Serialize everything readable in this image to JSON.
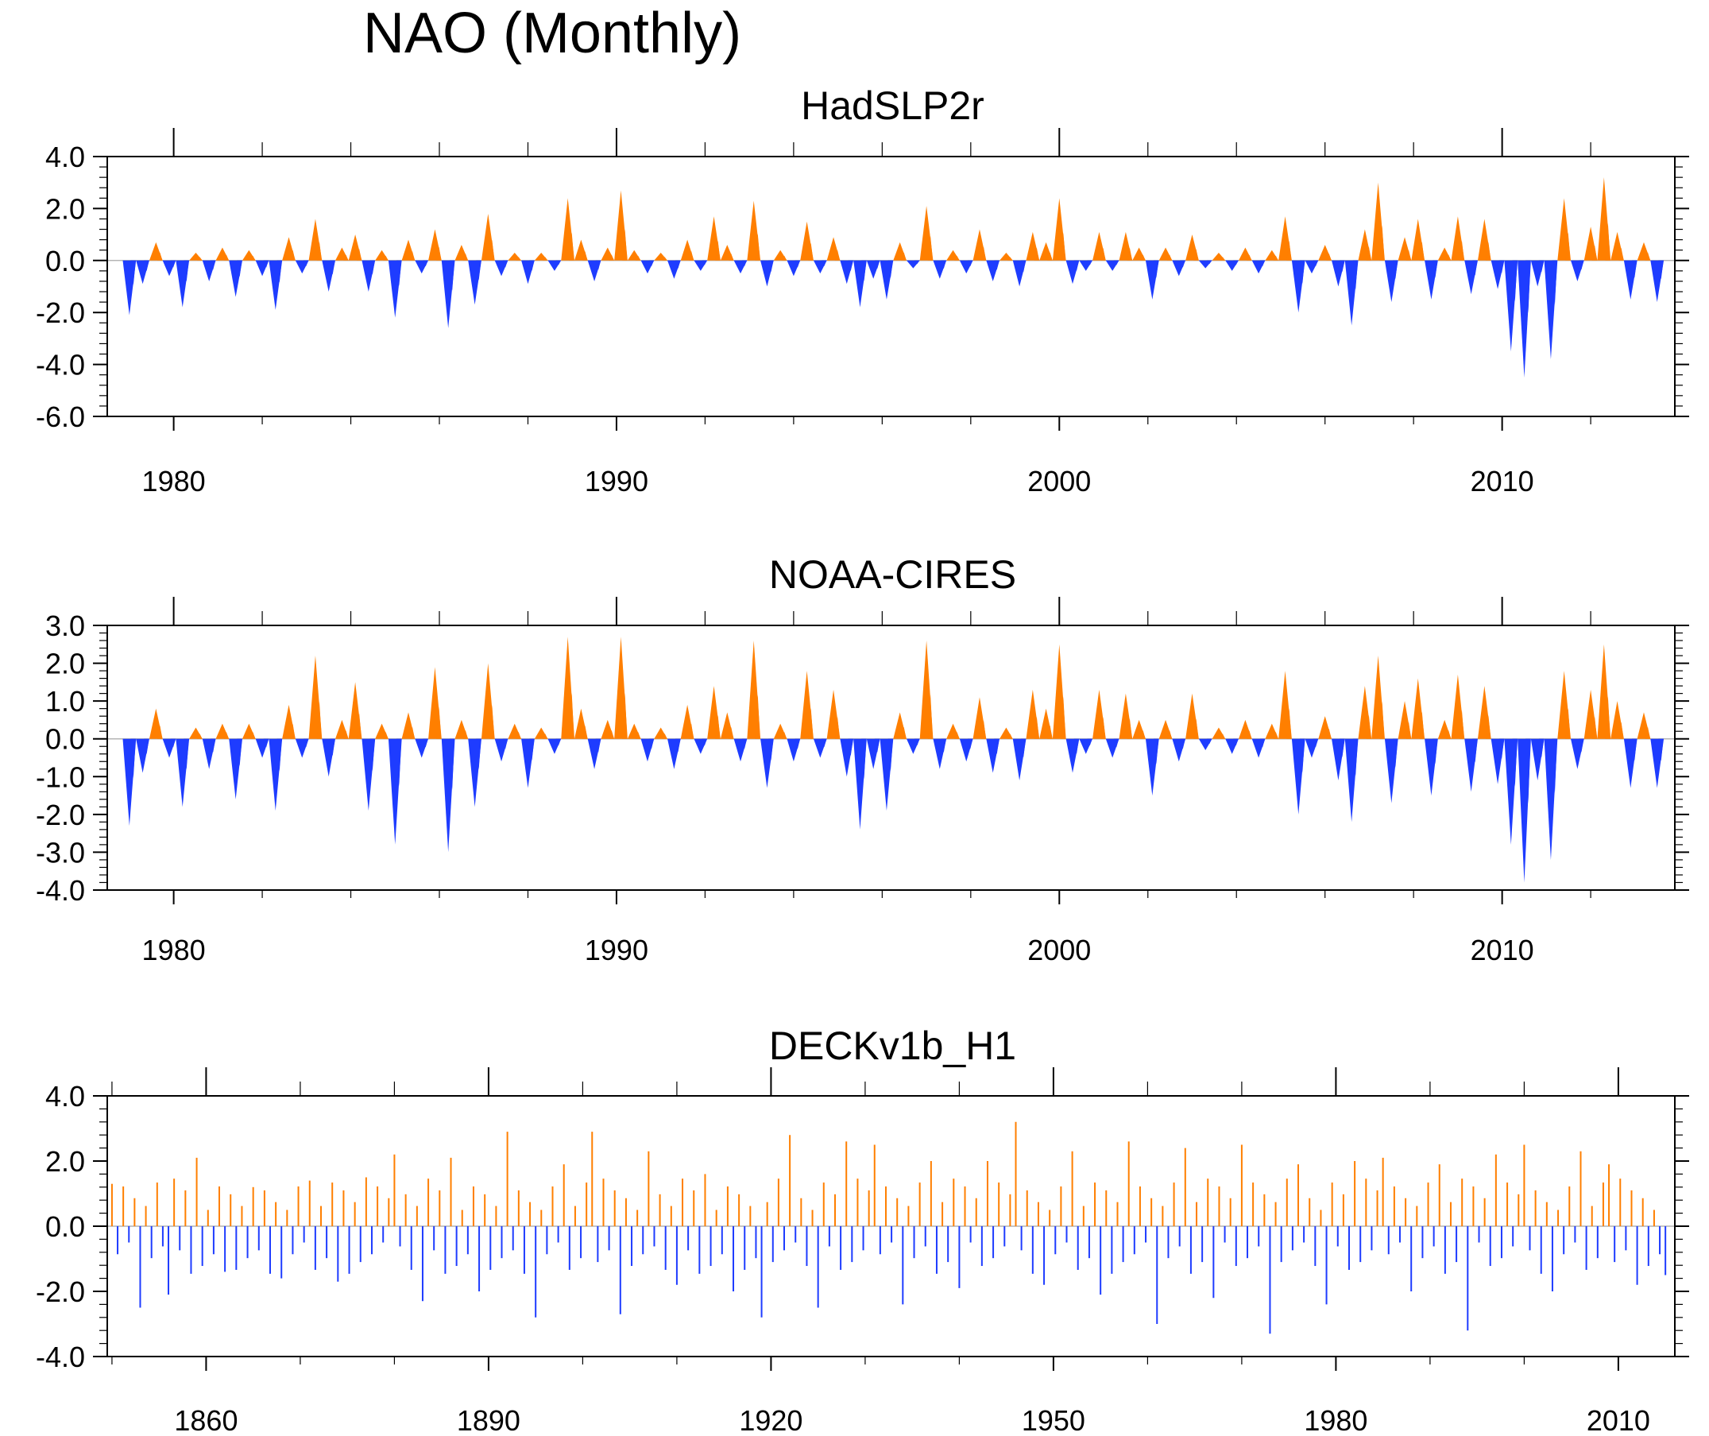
{
  "page_title": "NAO (Monthly)",
  "colors": {
    "positive": "#ff7f00",
    "negative": "#1e3cff",
    "axis": "#000000",
    "zero_line": "#b4b4b4"
  },
  "chart_data": [
    {
      "type": "area",
      "title": "HadSLP2r",
      "xlabel": "",
      "ylabel": "",
      "xlim": [
        1978.5,
        2013.9
      ],
      "ylim": [
        -6.0,
        4.0
      ],
      "y_ticks": [
        "4.0",
        "2.0",
        "0.0",
        "-2.0",
        "-4.0",
        "-6.0"
      ],
      "y_tick_values": [
        4,
        2,
        0,
        -2,
        -4,
        -6
      ],
      "x_ticks": [
        "1980",
        "1990",
        "2000",
        "2010"
      ],
      "x_tick_values": [
        1980,
        1990,
        2000,
        2010
      ],
      "fill": "above zero orange, below zero blue",
      "x": [
        1979.0,
        1979.3,
        1979.6,
        1979.9,
        1980.2,
        1980.5,
        1980.8,
        1981.1,
        1981.4,
        1981.7,
        1982.0,
        1982.3,
        1982.6,
        1982.9,
        1983.2,
        1983.5,
        1983.8,
        1984.1,
        1984.4,
        1984.7,
        1985.0,
        1985.3,
        1985.6,
        1985.9,
        1986.2,
        1986.5,
        1986.8,
        1987.1,
        1987.4,
        1987.7,
        1988.0,
        1988.3,
        1988.6,
        1988.9,
        1989.2,
        1989.5,
        1989.8,
        1990.1,
        1990.4,
        1990.7,
        1991.0,
        1991.3,
        1991.6,
        1991.9,
        1992.2,
        1992.5,
        1992.8,
        1993.1,
        1993.4,
        1993.7,
        1994.0,
        1994.3,
        1994.6,
        1994.9,
        1995.2,
        1995.5,
        1995.8,
        1996.1,
        1996.4,
        1996.7,
        1997.0,
        1997.3,
        1997.6,
        1997.9,
        1998.2,
        1998.5,
        1998.8,
        1999.1,
        1999.4,
        1999.7,
        2000.0,
        2000.3,
        2000.6,
        2000.9,
        2001.2,
        2001.5,
        2001.8,
        2002.1,
        2002.4,
        2002.7,
        2003.0,
        2003.3,
        2003.6,
        2003.9,
        2004.2,
        2004.5,
        2004.8,
        2005.1,
        2005.4,
        2005.7,
        2006.0,
        2006.3,
        2006.6,
        2006.9,
        2007.2,
        2007.5,
        2007.8,
        2008.1,
        2008.4,
        2008.7,
        2009.0,
        2009.3,
        2009.6,
        2009.9,
        2010.2,
        2010.5,
        2010.8,
        2011.1,
        2011.4,
        2011.7,
        2012.0,
        2012.3,
        2012.6,
        2012.9,
        2013.2,
        2013.5
      ],
      "values": [
        -2.1,
        -0.9,
        0.7,
        -0.6,
        -1.8,
        0.3,
        -0.8,
        0.5,
        -1.4,
        0.4,
        -0.6,
        -1.9,
        0.9,
        -0.5,
        1.6,
        -1.2,
        0.5,
        1.0,
        -1.2,
        0.4,
        -2.2,
        0.8,
        -0.5,
        1.2,
        -2.6,
        0.6,
        -1.7,
        1.8,
        -0.6,
        0.3,
        -0.9,
        0.3,
        -0.4,
        2.4,
        0.8,
        -0.8,
        0.5,
        2.7,
        0.4,
        -0.5,
        0.3,
        -0.7,
        0.8,
        -0.4,
        1.7,
        0.6,
        -0.5,
        2.3,
        -1.0,
        0.4,
        -0.6,
        1.5,
        -0.5,
        0.9,
        -0.9,
        -1.8,
        -0.7,
        -1.5,
        0.7,
        -0.3,
        2.1,
        -0.7,
        0.4,
        -0.5,
        1.2,
        -0.8,
        0.3,
        -1.0,
        1.1,
        0.7,
        2.4,
        -0.9,
        -0.4,
        1.1,
        -0.4,
        1.1,
        0.5,
        -1.5,
        0.5,
        -0.6,
        1.0,
        -0.3,
        0.3,
        -0.4,
        0.5,
        -0.5,
        0.4,
        1.7,
        -2.0,
        -0.5,
        0.6,
        -1.0,
        -2.5,
        1.2,
        3.0,
        -1.6,
        0.9,
        1.6,
        -1.5,
        0.5,
        1.7,
        -1.3,
        1.6,
        -1.1,
        -3.5,
        -4.5,
        -1.0,
        -3.8,
        2.4,
        -0.8,
        1.3,
        3.2,
        1.1,
        -1.5,
        0.7,
        -1.6
      ]
    },
    {
      "type": "area",
      "title": "NOAA-CIRES",
      "xlabel": "",
      "ylabel": "",
      "xlim": [
        1978.5,
        2013.9
      ],
      "ylim": [
        -4.0,
        3.0
      ],
      "y_ticks": [
        "3.0",
        "2.0",
        "1.0",
        "0.0",
        "-1.0",
        "-2.0",
        "-3.0",
        "-4.0"
      ],
      "y_tick_values": [
        3,
        2,
        1,
        0,
        -1,
        -2,
        -3,
        -4
      ],
      "x_ticks": [
        "1980",
        "1990",
        "2000",
        "2010"
      ],
      "x_tick_values": [
        1980,
        1990,
        2000,
        2010
      ],
      "fill": "above zero orange, below zero blue",
      "x": [
        1979.0,
        1979.3,
        1979.6,
        1979.9,
        1980.2,
        1980.5,
        1980.8,
        1981.1,
        1981.4,
        1981.7,
        1982.0,
        1982.3,
        1982.6,
        1982.9,
        1983.2,
        1983.5,
        1983.8,
        1984.1,
        1984.4,
        1984.7,
        1985.0,
        1985.3,
        1985.6,
        1985.9,
        1986.2,
        1986.5,
        1986.8,
        1987.1,
        1987.4,
        1987.7,
        1988.0,
        1988.3,
        1988.6,
        1988.9,
        1989.2,
        1989.5,
        1989.8,
        1990.1,
        1990.4,
        1990.7,
        1991.0,
        1991.3,
        1991.6,
        1991.9,
        1992.2,
        1992.5,
        1992.8,
        1993.1,
        1993.4,
        1993.7,
        1994.0,
        1994.3,
        1994.6,
        1994.9,
        1995.2,
        1995.5,
        1995.8,
        1996.1,
        1996.4,
        1996.7,
        1997.0,
        1997.3,
        1997.6,
        1997.9,
        1998.2,
        1998.5,
        1998.8,
        1999.1,
        1999.4,
        1999.7,
        2000.0,
        2000.3,
        2000.6,
        2000.9,
        2001.2,
        2001.5,
        2001.8,
        2002.1,
        2002.4,
        2002.7,
        2003.0,
        2003.3,
        2003.6,
        2003.9,
        2004.2,
        2004.5,
        2004.8,
        2005.1,
        2005.4,
        2005.7,
        2006.0,
        2006.3,
        2006.6,
        2006.9,
        2007.2,
        2007.5,
        2007.8,
        2008.1,
        2008.4,
        2008.7,
        2009.0,
        2009.3,
        2009.6,
        2009.9,
        2010.2,
        2010.5,
        2010.8,
        2011.1,
        2011.4,
        2011.7,
        2012.0,
        2012.3,
        2012.6,
        2012.9,
        2013.2,
        2013.5
      ],
      "values": [
        -2.3,
        -0.9,
        0.8,
        -0.5,
        -1.8,
        0.3,
        -0.8,
        0.4,
        -1.6,
        0.4,
        -0.5,
        -1.9,
        0.9,
        -0.5,
        2.2,
        -1.0,
        0.5,
        1.5,
        -1.9,
        0.4,
        -2.8,
        0.7,
        -0.5,
        1.9,
        -3.0,
        0.5,
        -1.8,
        2.0,
        -0.6,
        0.4,
        -1.3,
        0.3,
        -0.4,
        2.7,
        0.8,
        -0.8,
        0.5,
        2.7,
        0.4,
        -0.6,
        0.3,
        -0.8,
        0.9,
        -0.4,
        1.4,
        0.7,
        -0.6,
        2.6,
        -1.3,
        0.4,
        -0.6,
        1.8,
        -0.5,
        1.3,
        -1.0,
        -2.4,
        -0.8,
        -1.9,
        0.7,
        -0.4,
        2.6,
        -0.8,
        0.4,
        -0.6,
        1.1,
        -0.9,
        0.3,
        -1.1,
        1.3,
        0.8,
        2.5,
        -0.9,
        -0.4,
        1.3,
        -0.5,
        1.2,
        0.5,
        -1.5,
        0.5,
        -0.6,
        1.2,
        -0.3,
        0.3,
        -0.4,
        0.5,
        -0.5,
        0.4,
        1.8,
        -2.0,
        -0.5,
        0.6,
        -1.1,
        -2.2,
        1.4,
        2.2,
        -1.7,
        1.0,
        1.6,
        -1.5,
        0.5,
        1.7,
        -1.4,
        1.4,
        -1.2,
        -2.8,
        -3.8,
        -1.1,
        -3.2,
        1.8,
        -0.8,
        1.3,
        2.5,
        1.0,
        -1.3,
        0.7,
        -1.3
      ]
    },
    {
      "type": "bar",
      "title": "DECKv1b_H1",
      "xlabel": "",
      "ylabel": "",
      "xlim": [
        1849.5,
        2016.0
      ],
      "ylim": [
        -4.0,
        4.0
      ],
      "y_ticks": [
        "4.0",
        "2.0",
        "0.0",
        "-2.0",
        "-4.0"
      ],
      "y_tick_values": [
        4,
        2,
        0,
        -2,
        -4
      ],
      "x_ticks": [
        "1860",
        "1890",
        "1920",
        "1950",
        "1980",
        "2010"
      ],
      "x_tick_values": [
        1860,
        1890,
        1920,
        1950,
        1980,
        2010
      ],
      "fill": "above zero orange, below zero blue",
      "x": [
        1850,
        1853,
        1856,
        1859,
        1862,
        1865,
        1868,
        1871,
        1874,
        1877,
        1880,
        1883,
        1886,
        1889,
        1892,
        1895,
        1898,
        1901,
        1904,
        1907,
        1910,
        1913,
        1916,
        1919,
        1922,
        1925,
        1928,
        1931,
        1934,
        1937,
        1940,
        1943,
        1946,
        1949,
        1952,
        1955,
        1958,
        1961,
        1964,
        1967,
        1970,
        1973,
        1976,
        1979,
        1982,
        1985,
        1988,
        1991,
        1994,
        1997,
        2000,
        2003,
        2006,
        2009,
        2012,
        2015
      ],
      "values": [
        1.3,
        -2.5,
        -2.1,
        2.1,
        -1.4,
        1.2,
        -1.6,
        1.4,
        -1.7,
        1.5,
        2.2,
        -2.3,
        2.1,
        -2.0,
        2.9,
        -2.8,
        1.9,
        2.9,
        -2.7,
        2.3,
        -1.8,
        1.6,
        -2.0,
        -2.8,
        2.8,
        -2.5,
        2.6,
        2.5,
        -2.4,
        2.0,
        -1.9,
        2.0,
        3.2,
        -1.8,
        2.3,
        -2.1,
        2.6,
        -3.0,
        2.4,
        -2.2,
        2.5,
        -3.3,
        1.9,
        -2.4,
        2.0,
        2.1,
        -2.0,
        1.9,
        -3.2,
        2.2,
        2.5,
        -2.0,
        2.3,
        1.9,
        -1.8,
        -1.5
      ]
    }
  ]
}
